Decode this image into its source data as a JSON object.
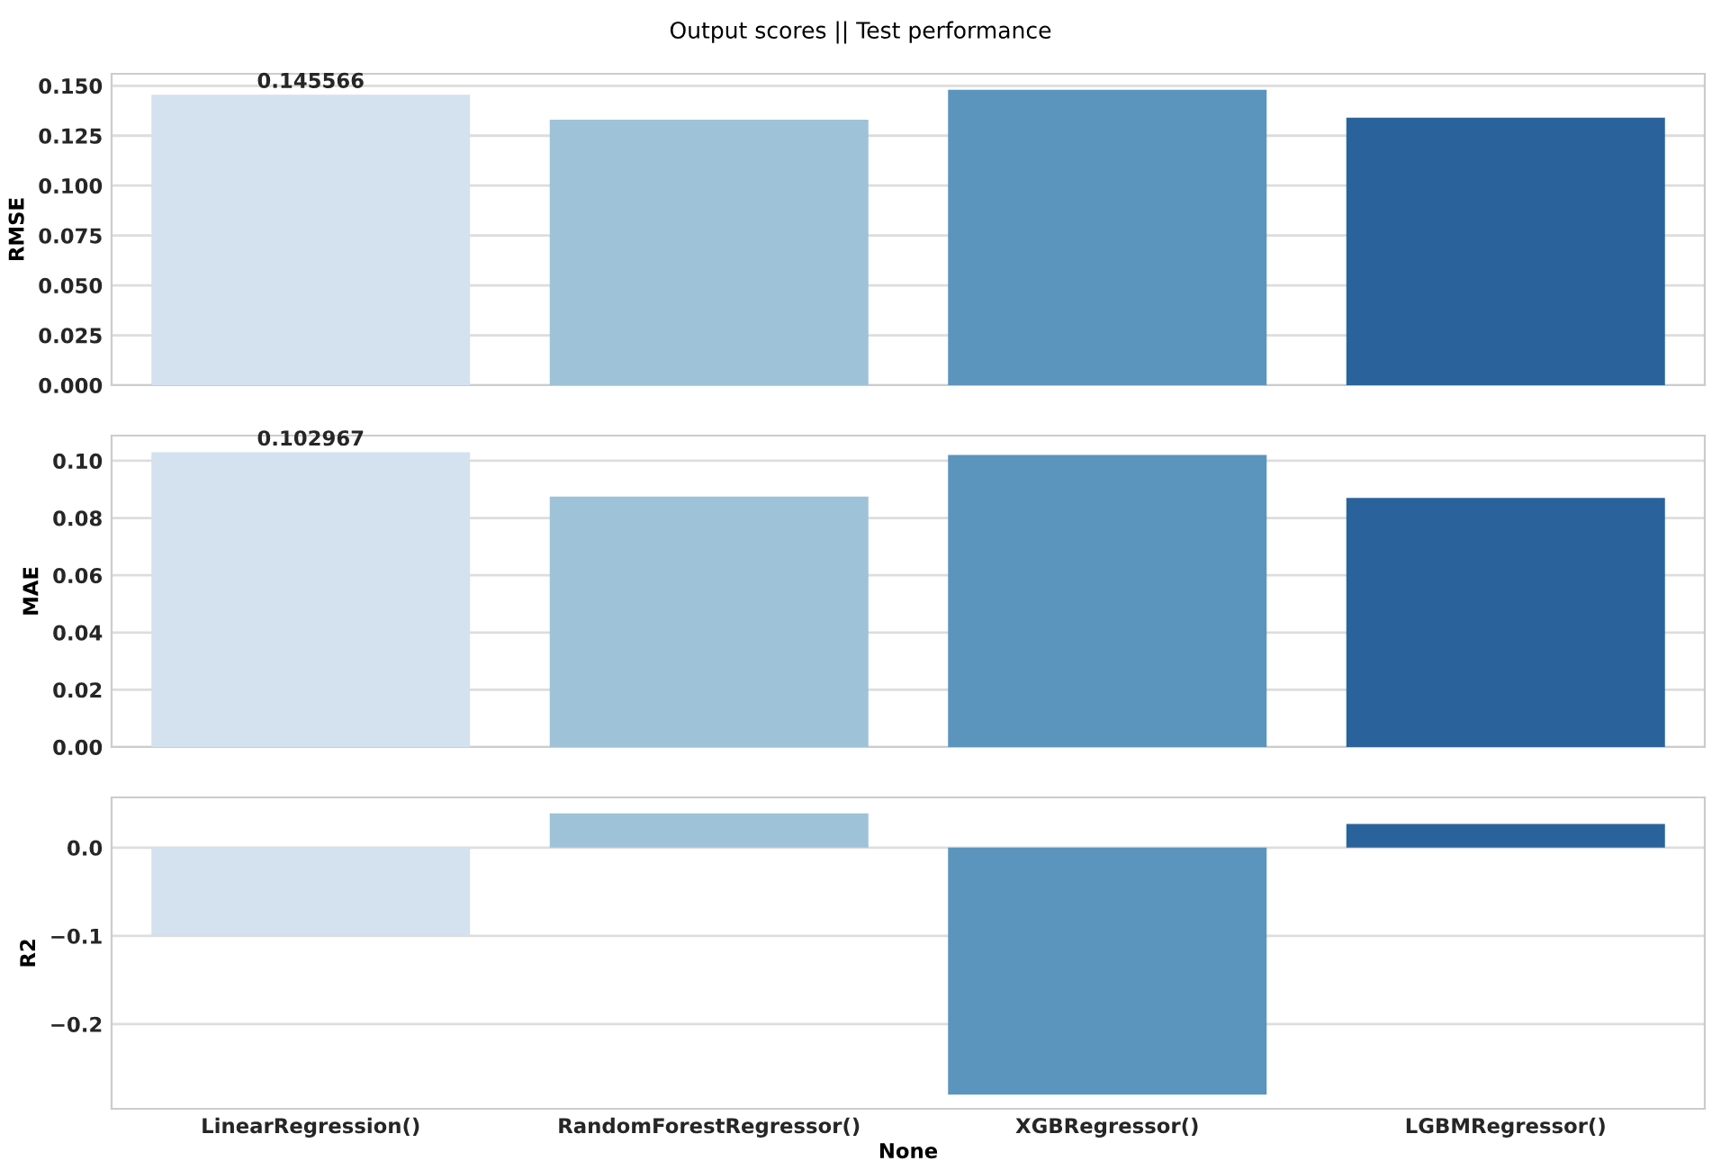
{
  "chart_data": [
    {
      "type": "bar",
      "title": "Output scores || Test performance",
      "ylabel": "RMSE",
      "categories": [
        null,
        null,
        null,
        null
      ],
      "values": [
        0.145566,
        0.133,
        0.148,
        0.134
      ],
      "value_labels": [
        "0.145566",
        null,
        null,
        null
      ],
      "colors": [
        "#d4e1ef",
        "#9ec2d7",
        "#5b95bd",
        "#2a639b"
      ],
      "ylim": [
        0,
        0.156
      ],
      "yticks": [
        {
          "value": 0,
          "label": "0.000"
        },
        {
          "value": 0.025,
          "label": "0.025"
        },
        {
          "value": 0.05,
          "label": "0.050"
        },
        {
          "value": 0.075,
          "label": "0.075"
        },
        {
          "value": 0.1,
          "label": "0.100"
        },
        {
          "value": 0.125,
          "label": "0.125"
        },
        {
          "value": 0.15,
          "label": "0.150"
        }
      ],
      "grid": "y",
      "tick_labels": "y"
    },
    {
      "type": "bar",
      "ylabel": "MAE",
      "categories": [
        null,
        null,
        null,
        null
      ],
      "values": [
        0.102967,
        0.0875,
        0.102,
        0.087
      ],
      "value_labels": [
        "0.102967",
        null,
        null,
        null
      ],
      "colors": [
        "#d4e1ef",
        "#9ec2d7",
        "#5b95bd",
        "#2a639b"
      ],
      "ylim": [
        0,
        0.1088
      ],
      "yticks": [
        {
          "value": 0,
          "label": "0.00"
        },
        {
          "value": 0.02,
          "label": "0.02"
        },
        {
          "value": 0.04,
          "label": "0.04"
        },
        {
          "value": 0.06,
          "label": "0.06"
        },
        {
          "value": 0.08,
          "label": "0.08"
        },
        {
          "value": 0.1,
          "label": "0.10"
        }
      ],
      "grid": "y",
      "tick_labels": "y"
    },
    {
      "type": "bar",
      "ylabel": "R2",
      "xlabel": "None",
      "categories": [
        "LinearRegression()",
        "RandomForestRegressor()",
        "XGBRegressor()",
        "LGBMRegressor()"
      ],
      "values": [
        -0.099,
        0.039,
        -0.28,
        0.027
      ],
      "colors": [
        "#d4e1ef",
        "#9ec2d7",
        "#5b95bd",
        "#2a639b"
      ],
      "ylim": [
        -0.296,
        0.057
      ],
      "yticks": [
        {
          "value": -0.2,
          "label": "−0.2"
        },
        {
          "value": -0.1,
          "label": "−0.1"
        },
        {
          "value": 0,
          "label": "0.0"
        }
      ],
      "grid": "y"
    }
  ]
}
